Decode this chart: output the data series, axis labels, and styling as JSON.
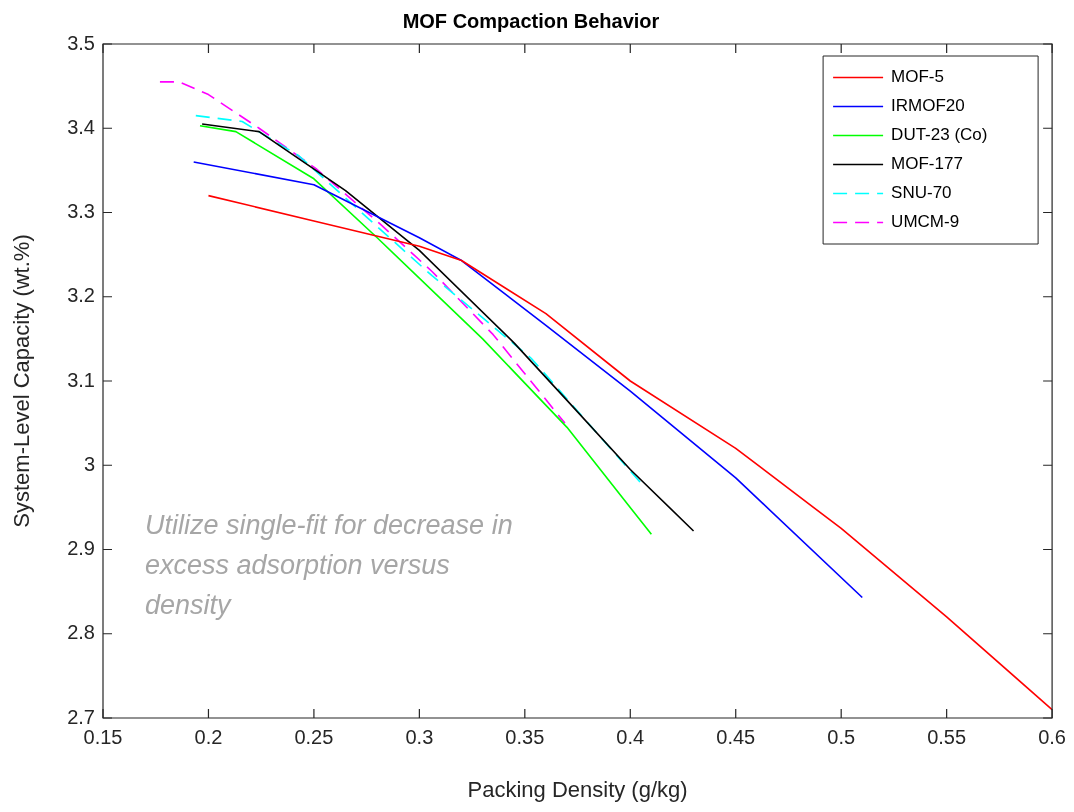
{
  "chart_data": {
    "type": "line",
    "title": "MOF Compaction Behavior",
    "xlabel": "Packing Density (g/kg)",
    "ylabel": "System-Level Capacity (wt.%)",
    "xlim": [
      0.15,
      0.6
    ],
    "xticks": [
      0.15,
      0.2,
      0.25,
      0.3,
      0.35,
      0.4,
      0.45,
      0.5,
      0.55,
      0.6
    ],
    "ylim": [
      2.7,
      3.5
    ],
    "yticks": [
      2.7,
      2.8,
      2.9,
      3,
      3.1,
      3.2,
      3.3,
      3.4,
      3.5
    ],
    "grid": false,
    "legend": "top right",
    "marker": "none",
    "annotations": [
      "Utilize single-fit for decrease in excess adsorption versus density"
    ],
    "series": [
      {
        "name": "MOF-5",
        "color": "#ff0000",
        "line_style": "solid",
        "x": [
          0.2,
          0.25,
          0.3,
          0.32,
          0.36,
          0.4,
          0.45,
          0.5,
          0.55,
          0.6
        ],
        "values": [
          3.32,
          3.29,
          3.26,
          3.243,
          3.18,
          3.1,
          3.02,
          2.925,
          2.82,
          2.71
        ]
      },
      {
        "name": "IRMOF20",
        "color": "#0000ff",
        "line_style": "solid",
        "x": [
          0.193,
          0.25,
          0.3,
          0.32,
          0.36,
          0.4,
          0.45,
          0.51
        ],
        "values": [
          3.36,
          3.333,
          3.27,
          3.243,
          3.166,
          3.088,
          2.985,
          2.843
        ]
      },
      {
        "name": "DUT-23 (Co)",
        "color": "#00ff00",
        "line_style": "solid",
        "x": [
          0.196,
          0.213,
          0.25,
          0.28,
          0.33,
          0.37,
          0.41
        ],
        "values": [
          3.403,
          3.396,
          3.34,
          3.27,
          3.15,
          3.045,
          2.918
        ]
      },
      {
        "name": "MOF-177",
        "color": "#000000",
        "line_style": "solid",
        "x": [
          0.197,
          0.224,
          0.265,
          0.3,
          0.345,
          0.37,
          0.4,
          0.43
        ],
        "values": [
          3.405,
          3.396,
          3.326,
          3.255,
          3.145,
          3.077,
          2.995,
          2.922
        ]
      },
      {
        "name": "SNU-70",
        "color": "#00ffff",
        "line_style": "dashed",
        "x": [
          0.194,
          0.216,
          0.243,
          0.277,
          0.306,
          0.353,
          0.405
        ],
        "values": [
          3.415,
          3.408,
          3.367,
          3.29,
          3.225,
          3.127,
          2.979
        ]
      },
      {
        "name": "UMCM-9",
        "color": "#ff00ff",
        "line_style": "dashed",
        "x": [
          0.177,
          0.186,
          0.2,
          0.224,
          0.251,
          0.282,
          0.306,
          0.335,
          0.369
        ],
        "values": [
          3.455,
          3.455,
          3.44,
          3.4,
          3.352,
          3.285,
          3.23,
          3.155,
          3.05
        ]
      }
    ]
  }
}
